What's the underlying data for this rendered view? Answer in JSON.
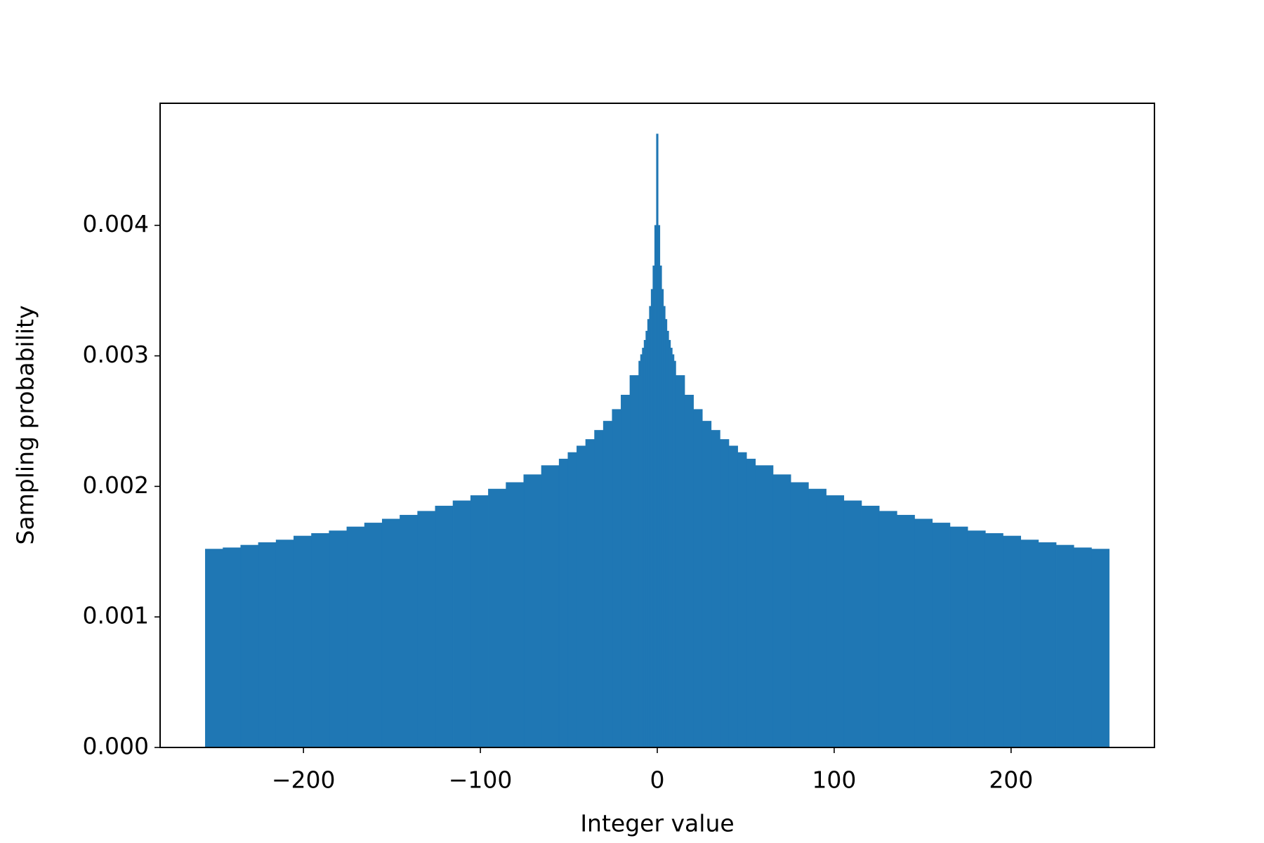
{
  "chart_data": {
    "type": "histogram",
    "xlabel": "Integer value",
    "ylabel": "Sampling probability",
    "color": "#1f77b4",
    "bins": [
      -255.5,
      -245.5,
      -235.5,
      -225.5,
      -215.5,
      -205.5,
      -195.5,
      -185.5,
      -175.5,
      -165.5,
      -155.5,
      -145.5,
      -135.5,
      -125.5,
      -115.5,
      -105.5,
      -95.5,
      -85.5,
      -75.5,
      -65.5,
      -55.5,
      -50.5,
      -45.5,
      -40.5,
      -35.5,
      -30.5,
      -25.5,
      -20.5,
      -15.5,
      -10.5,
      -9.5,
      -8.5,
      -7.5,
      -6.5,
      -5.5,
      -4.5,
      -3.5,
      -2.5,
      -1.5,
      -0.5,
      0.5,
      1.5,
      2.5,
      3.5,
      4.5,
      5.5,
      6.5,
      7.5,
      8.5,
      9.5,
      10.5,
      15.5,
      20.5,
      25.5,
      30.5,
      35.5,
      40.5,
      45.5,
      50.5,
      55.5,
      65.5,
      75.5,
      85.5,
      95.5,
      105.5,
      115.5,
      125.5,
      135.5,
      145.5,
      155.5,
      165.5,
      175.5,
      185.5,
      195.5,
      205.5,
      215.5,
      225.5,
      235.5,
      245.5,
      255.5
    ],
    "values": [
      0.00152,
      0.00153,
      0.00155,
      0.00157,
      0.00159,
      0.00162,
      0.00164,
      0.00166,
      0.00169,
      0.00172,
      0.00175,
      0.00178,
      0.00181,
      0.00185,
      0.00189,
      0.00193,
      0.00198,
      0.00203,
      0.00209,
      0.00216,
      0.00221,
      0.00226,
      0.00231,
      0.00236,
      0.00243,
      0.0025,
      0.00259,
      0.0027,
      0.00285,
      0.00296,
      0.00301,
      0.00306,
      0.00312,
      0.00319,
      0.00328,
      0.00338,
      0.00351,
      0.00369,
      0.004,
      0.0047,
      0.004,
      0.00369,
      0.00351,
      0.00338,
      0.00328,
      0.00319,
      0.00312,
      0.00306,
      0.00301,
      0.00296,
      0.00285,
      0.0027,
      0.00259,
      0.0025,
      0.00243,
      0.00236,
      0.00231,
      0.00226,
      0.00221,
      0.00216,
      0.00209,
      0.00203,
      0.00198,
      0.00193,
      0.00189,
      0.00185,
      0.00181,
      0.00178,
      0.00175,
      0.00172,
      0.00169,
      0.00166,
      0.00164,
      0.00162,
      0.00159,
      0.00157,
      0.00155,
      0.00153,
      0.00152
    ],
    "xlim": [
      -281.05,
      281.05
    ],
    "ylim": [
      0,
      0.004935
    ],
    "xticks": [
      {
        "value": -200,
        "label": "−200"
      },
      {
        "value": -100,
        "label": "−100"
      },
      0,
      100,
      200
    ],
    "yticks": [
      {
        "value": 0,
        "label": "0.000"
      },
      {
        "value": 0.001,
        "label": "0.001"
      },
      {
        "value": 0.002,
        "label": "0.002"
      },
      {
        "value": 0.003,
        "label": "0.003"
      },
      {
        "value": 0.004,
        "label": "0.004"
      }
    ],
    "grid": false
  }
}
